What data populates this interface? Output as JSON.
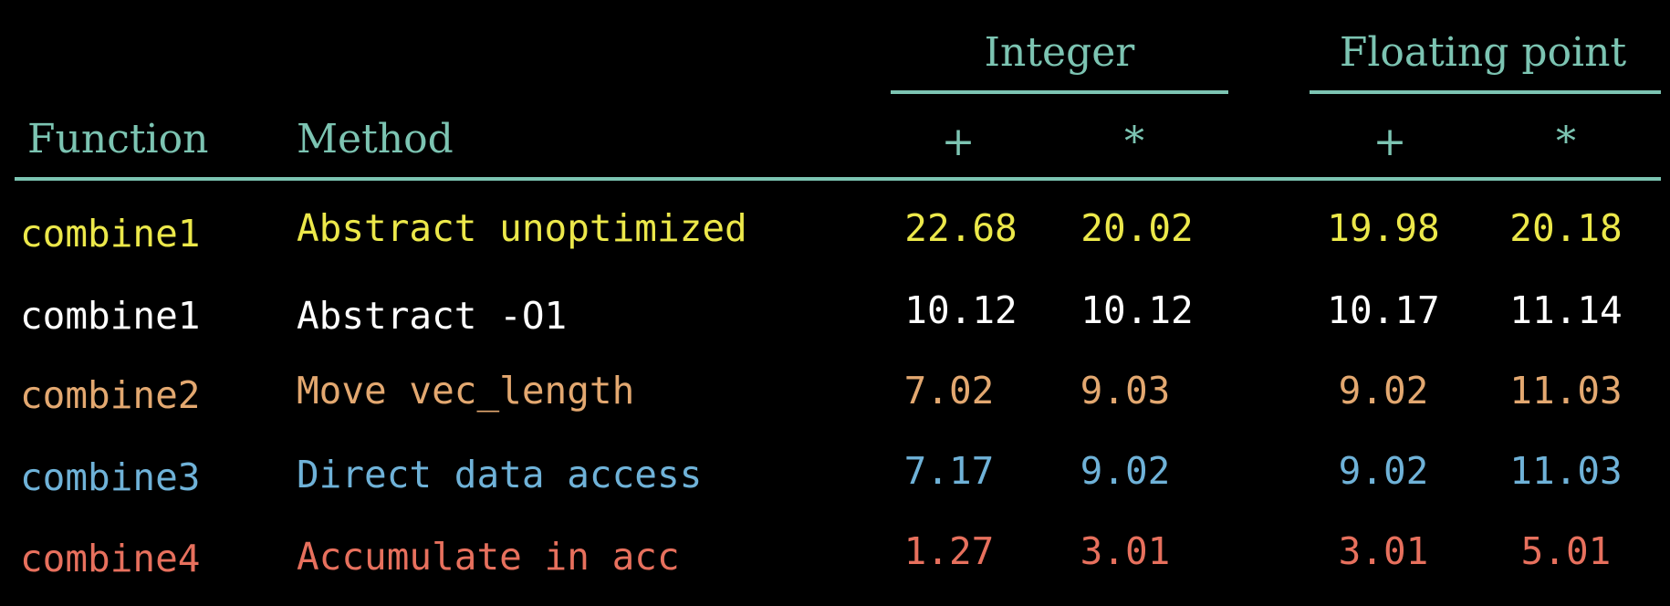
{
  "colors": {
    "background": "#000000",
    "header": "#7cc4b2",
    "rule": "#7cc4b2",
    "row1": "#ece84a",
    "row2": "#ffffff",
    "row3": "#e3a870",
    "row4": "#6fb2d8",
    "row5": "#e7705d"
  },
  "header": {
    "function": "Function",
    "method": "Method",
    "integer": "Integer",
    "floating": "Floating point",
    "int_add": "+",
    "int_mul": "*",
    "fp_add": "+",
    "fp_mul": "*"
  },
  "rows": [
    {
      "function": "combine1",
      "method": "Abstract unoptimized",
      "int_add": "22.68",
      "int_mul": "20.02",
      "fp_add": "19.98",
      "fp_mul": "20.18"
    },
    {
      "function": "combine1",
      "method": "Abstract -O1",
      "int_add": "10.12",
      "int_mul": "10.12",
      "fp_add": "10.17",
      "fp_mul": "11.14"
    },
    {
      "function": "combine2",
      "method": "Move vec_length",
      "int_add": "7.02",
      "int_mul": "9.03",
      "fp_add": "9.02",
      "fp_mul": "11.03"
    },
    {
      "function": "combine3",
      "method": "Direct data access",
      "int_add": "7.17",
      "int_mul": "9.02",
      "fp_add": "9.02",
      "fp_mul": "11.03"
    },
    {
      "function": "combine4",
      "method": "Accumulate in acc",
      "int_add": "1.27",
      "int_mul": "3.01",
      "fp_add": "3.01",
      "fp_mul": "5.01"
    }
  ]
}
